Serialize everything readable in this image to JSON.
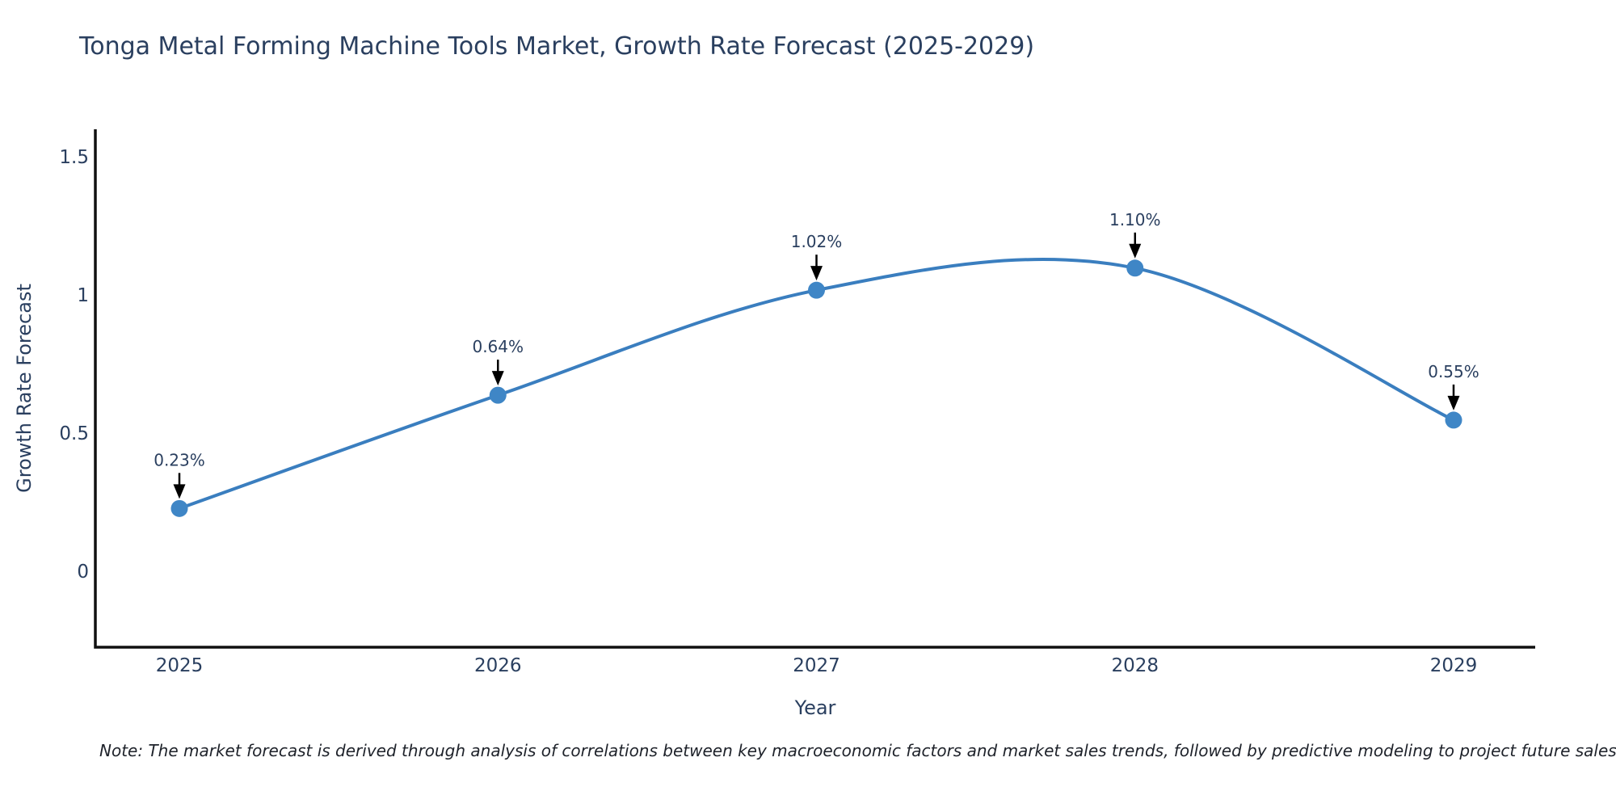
{
  "note": "Note: The market forecast is derived through analysis of correlations between key macroeconomic factors and market sales trends, followed by predictive modeling to project future sales",
  "colors": {
    "line": "#3a7ebf",
    "marker": "#3f86c6",
    "axis": "#101010",
    "text": "#2a3f5f",
    "annotation_arrow": "#000000"
  },
  "chart_data": {
    "type": "line",
    "title": "Tonga Metal Forming Machine Tools Market, Growth Rate Forecast (2025-2029)",
    "xlabel": "Year",
    "ylabel": "Growth Rate Forecast",
    "x": [
      2025,
      2026,
      2027,
      2028,
      2029
    ],
    "series": [
      {
        "name": "Growth Rate Forecast",
        "values": [
          0.23,
          0.64,
          1.02,
          1.1,
          0.55
        ],
        "point_labels": [
          "0.23%",
          "0.64%",
          "1.02%",
          "1.10%",
          "0.55%"
        ]
      }
    ],
    "line_shape": "spline",
    "markers": true,
    "annotations_with_arrows": true,
    "yticks": [
      0,
      0.5,
      1,
      1.5
    ],
    "ytick_labels": [
      "0",
      "0.5",
      "1",
      "1.5"
    ],
    "xtick_labels": [
      "2025",
      "2026",
      "2027",
      "2028",
      "2029"
    ],
    "ylim": [
      -0.27,
      1.6
    ],
    "grid": false,
    "legend_position": "none"
  }
}
